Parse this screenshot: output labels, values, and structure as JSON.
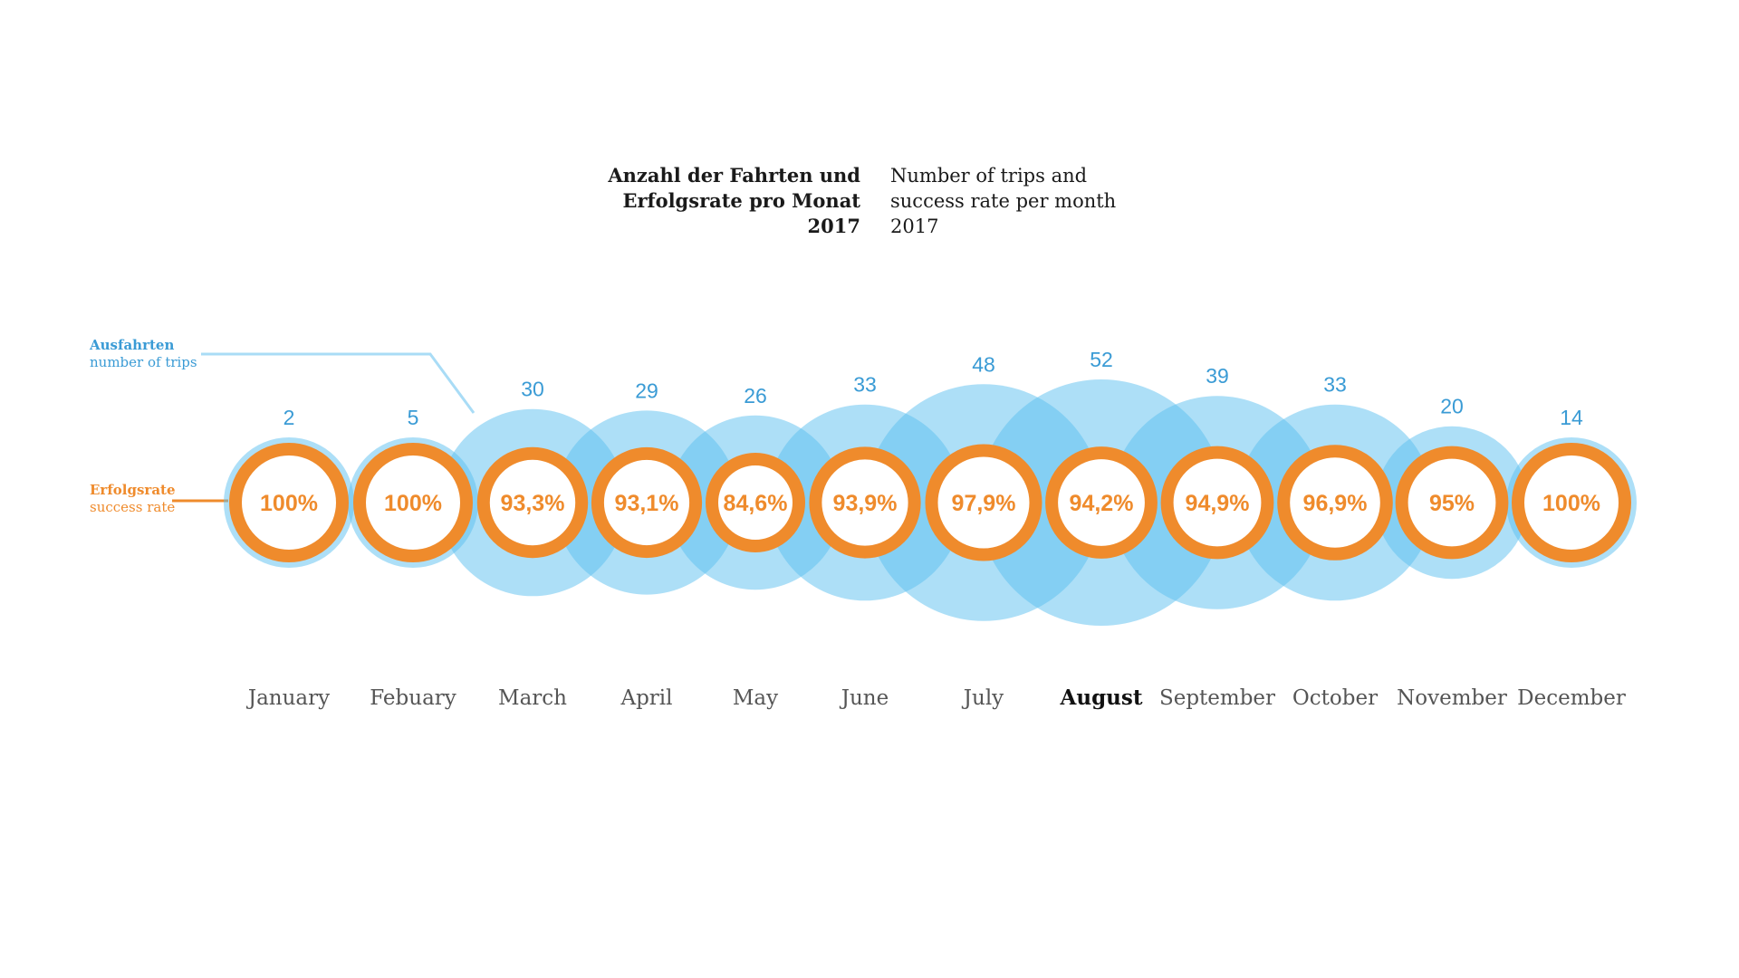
{
  "title": {
    "de": "Anzahl der Fahrten und\nErfolgsrate pro Monat\n2017",
    "en": "Number of trips and\nsuccess rate per month\n2017"
  },
  "legend": {
    "trips_de": "Ausfahrten",
    "trips_en": "number of trips",
    "rate_de": "Erfolgsrate",
    "rate_en": "success rate"
  },
  "colors": {
    "trips": "#5bc0f0",
    "trips_text": "#3a9bd5",
    "rate": "#ef8b2c"
  },
  "chart_data": {
    "type": "bubble",
    "highlight_category": "August",
    "categories": [
      "January",
      "Febuary",
      "March",
      "April",
      "May",
      "June",
      "July",
      "August",
      "September",
      "October",
      "November",
      "December"
    ],
    "series": [
      {
        "name": "number of trips",
        "values": [
          2,
          5,
          30,
          29,
          26,
          33,
          48,
          52,
          39,
          33,
          20,
          14
        ]
      },
      {
        "name": "success rate",
        "values": [
          100,
          100,
          93.3,
          93.1,
          84.6,
          93.9,
          97.9,
          94.2,
          94.9,
          96.9,
          95,
          100
        ],
        "labels": [
          "100%",
          "100%",
          "93,3%",
          "93,1%",
          "84,6%",
          "93,9%",
          "97,9%",
          "94,2%",
          "94,9%",
          "96,9%",
          "95%",
          "100%"
        ]
      }
    ]
  }
}
